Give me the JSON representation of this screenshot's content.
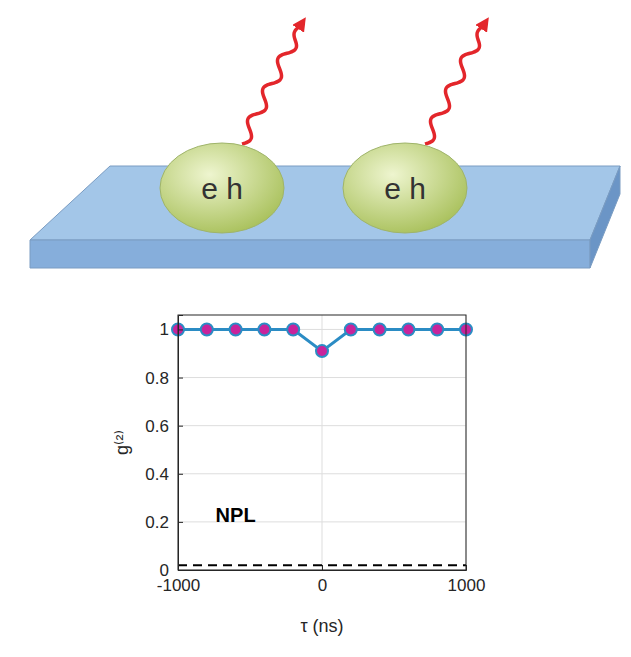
{
  "illustration": {
    "particles": [
      {
        "label": "e h"
      },
      {
        "label": "e h"
      }
    ]
  },
  "chart_data": {
    "type": "line",
    "x": [
      -1000,
      -800,
      -600,
      -400,
      -200,
      0,
      200,
      400,
      600,
      800,
      1000
    ],
    "series": [
      {
        "color": "#2b8cc4",
        "marker": "circle",
        "line_style": "solid",
        "values": [
          1,
          1,
          1,
          1,
          1,
          0.91,
          1,
          1,
          1,
          1,
          1
        ]
      },
      {
        "color": "#000000",
        "marker": "none",
        "line_style": "dashed",
        "values": [
          0.02,
          0.02,
          0.02,
          0.02,
          0.02,
          0.02,
          0.02,
          0.02,
          0.02,
          0.02,
          0.02
        ]
      }
    ],
    "x_label": "τ (ns)",
    "y_label": "g⁽²⁾",
    "xlim": [
      -1000,
      1000
    ],
    "xticks": [
      -1000,
      0,
      1000
    ],
    "ylim": [
      0,
      1.06
    ],
    "yticks": [
      0,
      0.2,
      0.4,
      0.6,
      0.8,
      1
    ],
    "grid": true,
    "annotations": [
      {
        "text": "NPL",
        "x": -600,
        "y": 0.2
      }
    ]
  }
}
